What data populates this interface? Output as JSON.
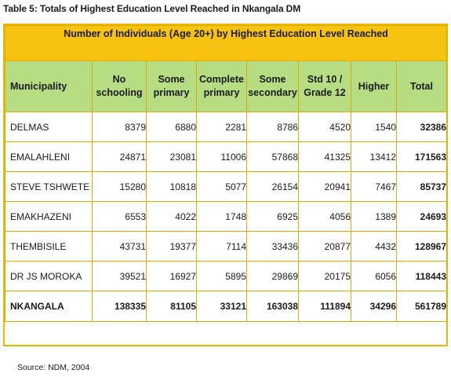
{
  "caption": "Table 5: Totals of Highest Education Level Reached in Nkangala DM",
  "banner": "Number of Individuals (Age 20+) by Highest Education Level Reached",
  "headers": [
    {
      "l1": "Municipality",
      "l2": ""
    },
    {
      "l1": "No",
      "l2": "schooling"
    },
    {
      "l1": "Some",
      "l2": "primary"
    },
    {
      "l1": "Complete",
      "l2": "primary"
    },
    {
      "l1": "Some",
      "l2": "secondary"
    },
    {
      "l1": "Std 10 /",
      "l2": "Grade 12"
    },
    {
      "l1": "Higher",
      "l2": ""
    },
    {
      "l1": "Total",
      "l2": ""
    }
  ],
  "rows": [
    {
      "municipality": "DELMAS",
      "no_schooling": "8379",
      "some_primary": "6880",
      "complete_primary": "2281",
      "some_secondary": "8786",
      "grade12": "4520",
      "higher": "1540",
      "total": "32386"
    },
    {
      "municipality": "EMALAHLENI",
      "no_schooling": "24871",
      "some_primary": "23081",
      "complete_primary": "11006",
      "some_secondary": "57868",
      "grade12": "41325",
      "higher": "13412",
      "total": "171563"
    },
    {
      "municipality": "STEVE TSHWETE",
      "no_schooling": "15280",
      "some_primary": "10818",
      "complete_primary": "5077",
      "some_secondary": "26154",
      "grade12": "20941",
      "higher": "7467",
      "total": "85737"
    },
    {
      "municipality": "EMAKHAZENI",
      "no_schooling": "6553",
      "some_primary": "4022",
      "complete_primary": "1748",
      "some_secondary": "6925",
      "grade12": "4056",
      "higher": "1389",
      "total": "24693"
    },
    {
      "municipality": "THEMBISILE",
      "no_schooling": "43731",
      "some_primary": "19377",
      "complete_primary": "7114",
      "some_secondary": "33436",
      "grade12": "20877",
      "higher": "4432",
      "total": "128967"
    },
    {
      "municipality": "DR JS MOROKA",
      "no_schooling": "39521",
      "some_primary": "16927",
      "complete_primary": "5895",
      "some_secondary": "29869",
      "grade12": "20175",
      "higher": "6056",
      "total": "118443"
    }
  ],
  "total_row": {
    "municipality": "NKANGALA",
    "no_schooling": "138335",
    "some_primary": "81105",
    "complete_primary": "33121",
    "some_secondary": "163038",
    "grade12": "111894",
    "higher": "34296",
    "total": "561789"
  },
  "source": "Source: NDM, 2004",
  "colors": {
    "banner": "#f6c311",
    "header": "#b7dd82",
    "border": "#d9ad00"
  }
}
